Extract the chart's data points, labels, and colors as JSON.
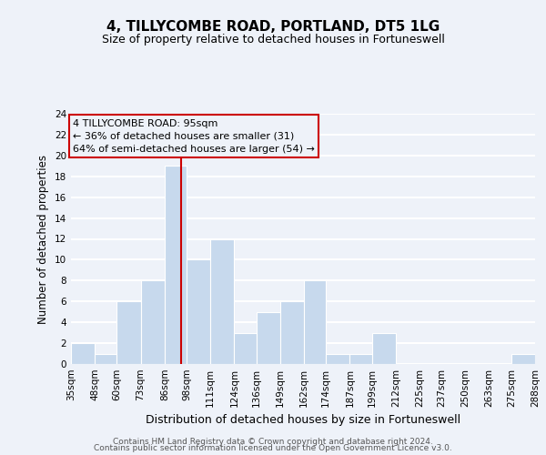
{
  "title": "4, TILLYCOMBE ROAD, PORTLAND, DT5 1LG",
  "subtitle": "Size of property relative to detached houses in Fortuneswell",
  "xlabel": "Distribution of detached houses by size in Fortuneswell",
  "ylabel": "Number of detached properties",
  "bin_edges": [
    35,
    48,
    60,
    73,
    86,
    98,
    111,
    124,
    136,
    149,
    162,
    174,
    187,
    199,
    212,
    225,
    237,
    250,
    263,
    275,
    288
  ],
  "bin_labels": [
    "35sqm",
    "48sqm",
    "60sqm",
    "73sqm",
    "86sqm",
    "98sqm",
    "111sqm",
    "124sqm",
    "136sqm",
    "149sqm",
    "162sqm",
    "174sqm",
    "187sqm",
    "199sqm",
    "212sqm",
    "225sqm",
    "237sqm",
    "250sqm",
    "263sqm",
    "275sqm",
    "288sqm"
  ],
  "counts": [
    2,
    1,
    6,
    8,
    19,
    10,
    12,
    3,
    5,
    6,
    8,
    1,
    1,
    3,
    0,
    0,
    0,
    0,
    0,
    1
  ],
  "bar_color": "#c7d9ed",
  "bar_edge_color": "#ffffff",
  "property_size": 95,
  "vline_color": "#cc0000",
  "annotation_line1": "4 TILLYCOMBE ROAD: 95sqm",
  "annotation_line2": "← 36% of detached houses are smaller (31)",
  "annotation_line3": "64% of semi-detached houses are larger (54) →",
  "annotation_box_edge": "#cc0000",
  "ylim": [
    0,
    24
  ],
  "yticks": [
    0,
    2,
    4,
    6,
    8,
    10,
    12,
    14,
    16,
    18,
    20,
    22,
    24
  ],
  "footer_line1": "Contains HM Land Registry data © Crown copyright and database right 2024.",
  "footer_line2": "Contains public sector information licensed under the Open Government Licence v3.0.",
  "background_color": "#eef2f9",
  "grid_color": "#ffffff",
  "title_fontsize": 11,
  "subtitle_fontsize": 9,
  "ylabel_fontsize": 8.5,
  "xlabel_fontsize": 9,
  "tick_fontsize": 7.5,
  "annot_fontsize": 8,
  "footer_fontsize": 6.5
}
